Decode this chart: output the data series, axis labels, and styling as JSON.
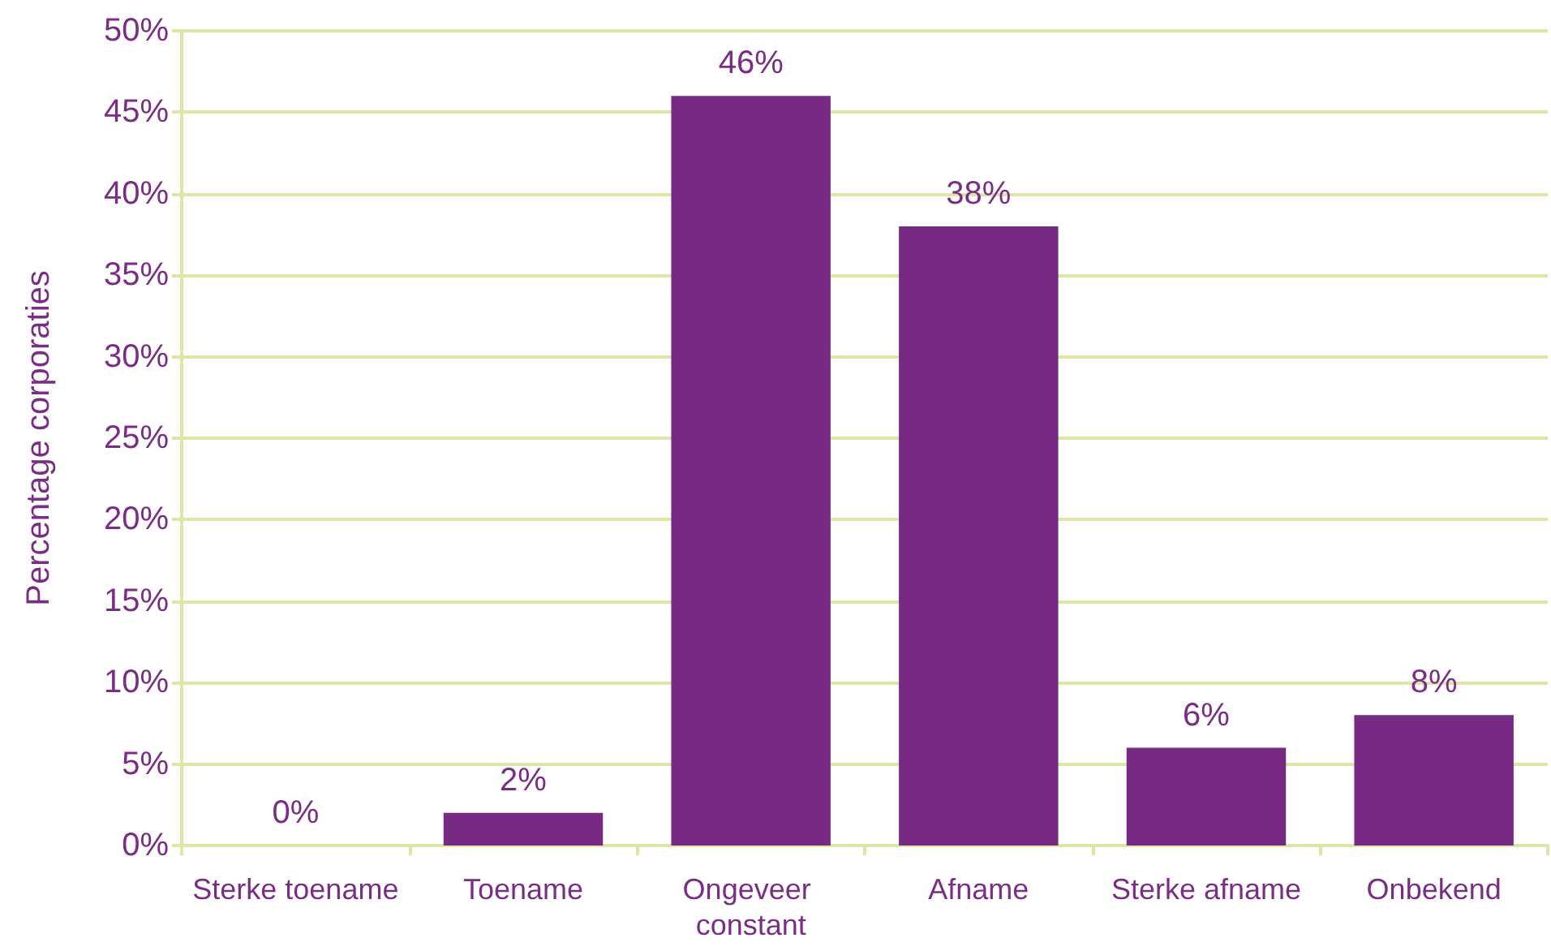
{
  "chart_data": {
    "type": "bar",
    "ylabel": "Percentage corporaties",
    "categories": [
      "Sterke toename",
      "Toename",
      "Ongeveer constant",
      "Afname",
      "Sterke afname",
      "Onbekend"
    ],
    "values": [
      0,
      2,
      46,
      38,
      6,
      8
    ],
    "value_labels": [
      "0%",
      "2%",
      "46%",
      "38%",
      "6%",
      "8%"
    ],
    "color": "#762a83",
    "ylim": [
      0,
      50
    ],
    "yticks": [
      {
        "value": 0,
        "label": "0%"
      },
      {
        "value": 5,
        "label": "5%"
      },
      {
        "value": 10,
        "label": "10%"
      },
      {
        "value": 15,
        "label": "15%"
      },
      {
        "value": 20,
        "label": "20%"
      },
      {
        "value": 25,
        "label": "25%"
      },
      {
        "value": 30,
        "label": "30%"
      },
      {
        "value": 35,
        "label": "35%"
      },
      {
        "value": 40,
        "label": "40%"
      },
      {
        "value": 45,
        "label": "45%"
      },
      {
        "value": 50,
        "label": "50%"
      }
    ],
    "grid": "y"
  }
}
